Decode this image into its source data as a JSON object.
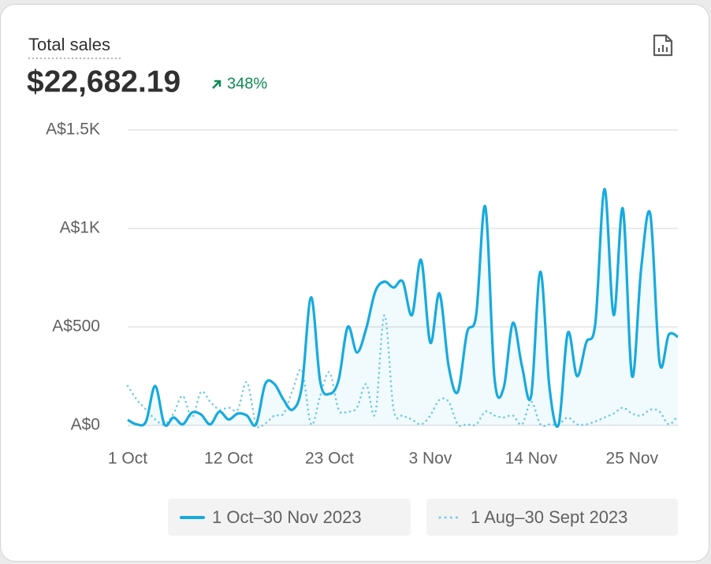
{
  "chart_data": {
    "type": "line",
    "title": "Total sales",
    "total": "$22,682.19",
    "change": "348%",
    "categories": [
      "1 Oct",
      null,
      null,
      null,
      null,
      null,
      null,
      null,
      null,
      null,
      null,
      "12 Oct",
      null,
      null,
      null,
      null,
      null,
      null,
      null,
      null,
      null,
      null,
      "23 Oct",
      null,
      null,
      null,
      null,
      null,
      null,
      null,
      null,
      null,
      null,
      "3 Nov",
      null,
      null,
      null,
      null,
      null,
      null,
      null,
      null,
      null,
      null,
      "14 Nov",
      null,
      null,
      null,
      null,
      null,
      null,
      null,
      null,
      null,
      null,
      "25 Nov",
      null,
      null,
      null,
      null,
      null
    ],
    "series": [
      {
        "name": "1 Oct–30 Nov 2023",
        "color": "#16aadf",
        "style": "solid",
        "values": [
          28,
          5,
          20,
          200,
          5,
          40,
          5,
          65,
          55,
          5,
          70,
          30,
          60,
          50,
          5,
          210,
          210,
          130,
          80,
          200,
          650,
          220,
          160,
          230,
          500,
          370,
          490,
          680,
          730,
          700,
          730,
          560,
          840,
          420,
          670,
          300,
          170,
          470,
          560,
          1110,
          240,
          190,
          520,
          300,
          150,
          780,
          190,
          5,
          470,
          250,
          420,
          520,
          1200,
          560,
          1100,
          250,
          800,
          1070,
          320,
          460,
          450
        ]
      },
      {
        "name": "1 Aug–30 Sept 2023",
        "color": "#72cbe7",
        "style": "dotted",
        "values": [
          200,
          130,
          80,
          30,
          5,
          60,
          150,
          40,
          170,
          120,
          80,
          90,
          80,
          220,
          5,
          10,
          50,
          60,
          180,
          280,
          5,
          150,
          270,
          80,
          70,
          90,
          210,
          60,
          560,
          80,
          50,
          30,
          5,
          50,
          130,
          120,
          5,
          5,
          5,
          70,
          50,
          40,
          50,
          5,
          120,
          5,
          5,
          5,
          40,
          5,
          5,
          20,
          40,
          60,
          90,
          60,
          50,
          80,
          70,
          5,
          50
        ]
      }
    ],
    "ylim": [
      0,
      1500
    ],
    "yticks": [
      {
        "value": 0,
        "label": "A$0"
      },
      {
        "value": 500,
        "label": "A$500"
      },
      {
        "value": 1000,
        "label": "A$1K"
      },
      {
        "value": 1500,
        "label": "A$1.5K"
      }
    ],
    "grid": true
  }
}
